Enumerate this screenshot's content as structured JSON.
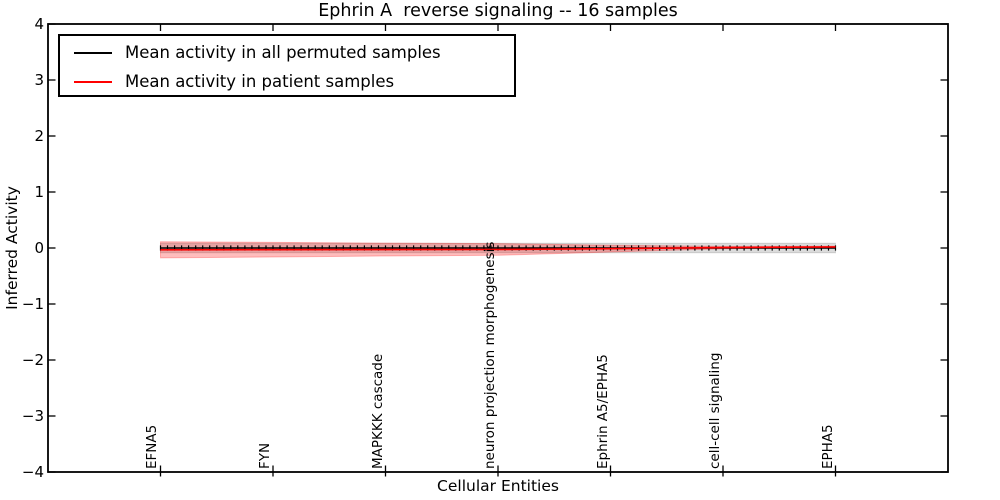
{
  "chart_data": {
    "type": "line",
    "title": "Ephrin A  reverse signaling -- 16 samples",
    "xlabel": "Cellular Entities",
    "ylabel": "Inferred Activity",
    "ylim": [
      -4,
      4
    ],
    "ytick_labels": [
      "4",
      "3",
      "2",
      "1",
      "0",
      "−1",
      "−2",
      "−3",
      "−4"
    ],
    "grid": false,
    "legend_position": "upper left",
    "categories": [
      "EFNA5",
      "FYN",
      "MAPKKK cascade",
      "neuron projection morphogenesis",
      "Ephrin A5/EPHA5",
      "cell-cell signaling",
      "EPHA5"
    ],
    "series": [
      {
        "name": "Mean activity in all permuted samples",
        "color": "#000000",
        "marker": "|",
        "values": [
          0.0,
          0.0,
          0.0,
          0.0,
          0.0,
          0.0,
          0.0
        ],
        "band_halfwidth": [
          0.085,
          0.085,
          0.085,
          0.085,
          0.085,
          0.085,
          0.085
        ],
        "band_color": "rgba(0,0,0,0.14)"
      },
      {
        "name": "Mean activity in patient samples",
        "color": "#ff0000",
        "marker": "none",
        "values": [
          -0.032,
          -0.03,
          -0.028,
          -0.026,
          -0.012,
          0.008,
          0.02
        ],
        "band_halfwidth": [
          0.145,
          0.13,
          0.115,
          0.105,
          0.06,
          0.02,
          0.012
        ],
        "band_color": "rgba(255,0,0,0.26)"
      }
    ]
  }
}
